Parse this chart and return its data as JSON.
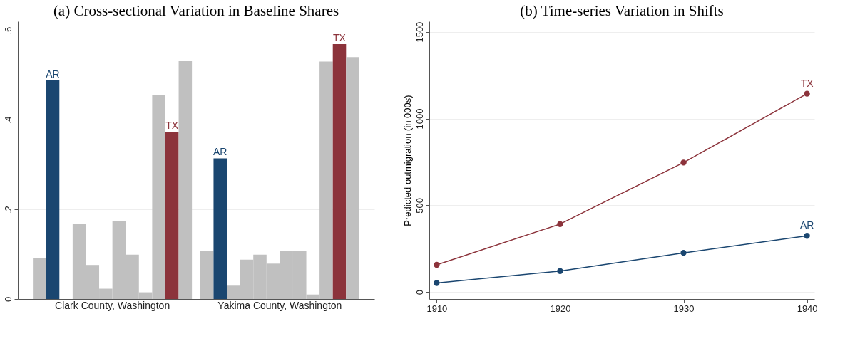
{
  "chart_data": [
    {
      "type": "bar",
      "title": "(a) Cross-sectional Variation in Baseline Shares",
      "categories": [
        "Clark County, Washington",
        "Yakima County, Washington"
      ],
      "series": [
        {
          "color": "#c0c0c0",
          "values": [
            0.091,
            0.108
          ]
        },
        {
          "name": "AR",
          "color": "#1a4670",
          "values": [
            0.488,
            0.314
          ]
        },
        {
          "color": "#c0c0c0",
          "values": [
            null,
            0.03
          ]
        },
        {
          "color": "#c0c0c0",
          "values": [
            0.168,
            0.088
          ]
        },
        {
          "color": "#c0c0c0",
          "values": [
            0.076,
            0.099
          ]
        },
        {
          "color": "#c0c0c0",
          "values": [
            0.023,
            0.079
          ]
        },
        {
          "color": "#c0c0c0",
          "values": [
            0.175,
            0.108
          ]
        },
        {
          "color": "#c0c0c0",
          "values": [
            0.099,
            0.108
          ]
        },
        {
          "color": "#c0c0c0",
          "values": [
            0.015,
            0.01
          ]
        },
        {
          "color": "#c0c0c0",
          "values": [
            0.456,
            0.53
          ]
        },
        {
          "name": "TX",
          "color": "#8c333b",
          "values": [
            0.373,
            0.569
          ]
        },
        {
          "color": "#c0c0c0",
          "values": [
            0.532,
            0.54
          ]
        }
      ],
      "ylim": [
        0,
        0.62
      ],
      "yticks": [
        0,
        {
          "value": 0.2,
          "label": ".2"
        },
        {
          "value": 0.4,
          "label": ".4"
        },
        {
          "value": 0.6,
          "label": ".6"
        }
      ],
      "grid": "y"
    },
    {
      "type": "line",
      "title": "(b) Time-series Variation in Shifts",
      "ylabel": "Predicted outmigration (in 000s)",
      "x": [
        1910,
        1920,
        1930,
        1940
      ],
      "series": [
        {
          "name": "TX",
          "color": "#8c333b",
          "values": [
            157,
            392,
            746,
            1143
          ]
        },
        {
          "name": "AR",
          "color": "#1a4670",
          "values": [
            52,
            121,
            226,
            324
          ]
        }
      ],
      "xlim": [
        1909.4,
        1940.6
      ],
      "xticks": [
        1910,
        1920,
        1930,
        1940
      ],
      "ylim": [
        -40,
        1560
      ],
      "yticks": [
        0,
        500,
        1000,
        1500
      ],
      "grid": "y",
      "marker": "circle"
    }
  ]
}
